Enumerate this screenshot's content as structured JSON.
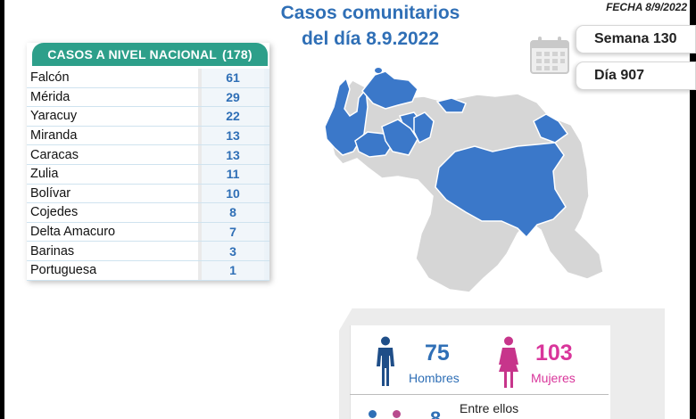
{
  "header": {
    "title_line1": "Casos comunitarios",
    "title_line2": "del día 8.9.2022",
    "fecha": "FECHA 8/9/2022",
    "semana": "Semana 130",
    "dia": "Día 907"
  },
  "table": {
    "title": "CASOS A NIVEL NACIONAL",
    "total": "(178)",
    "rows": [
      {
        "name": "Falcón",
        "value": "61"
      },
      {
        "name": "Mérida",
        "value": "29"
      },
      {
        "name": "Yaracuy",
        "value": "22"
      },
      {
        "name": "Miranda",
        "value": "13"
      },
      {
        "name": "Caracas",
        "value": "13"
      },
      {
        "name": "Zulia",
        "value": "11"
      },
      {
        "name": "Bolívar",
        "value": "10"
      },
      {
        "name": "Cojedes",
        "value": "8"
      },
      {
        "name": "Delta Amacuro",
        "value": "7"
      },
      {
        "name": "Barinas",
        "value": "3"
      },
      {
        "name": "Portuguesa",
        "value": "1"
      }
    ]
  },
  "gender": {
    "men_count": "75",
    "men_label": "Hombres",
    "women_count": "103",
    "women_label": "Mujeres",
    "subheading": "Entre ellos"
  },
  "icons": [
    "calendar-icon",
    "man-icon",
    "woman-icon",
    "venezuela-map"
  ],
  "colors": {
    "title_blue": "#2f6fb6",
    "header_teal": "#2d9f8a",
    "affected_state": "#3b78c9",
    "unaffected_state": "#d6d6d6",
    "women_pink": "#d9369b"
  }
}
